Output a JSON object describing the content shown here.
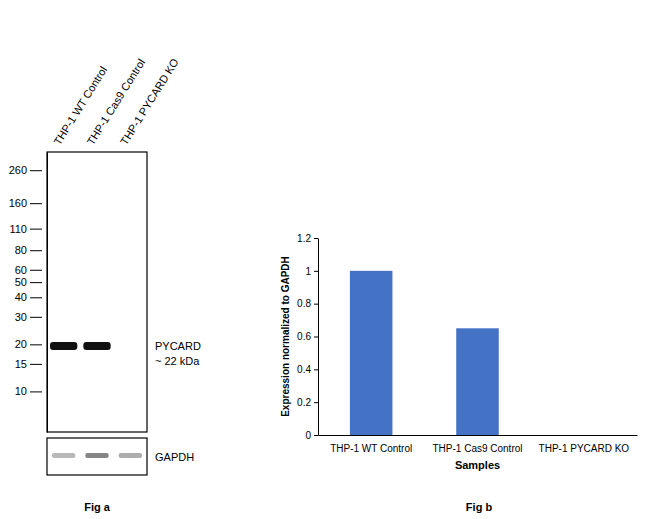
{
  "chart_data": [
    {
      "type": "blot",
      "title": "Fig a",
      "categories": [
        "THP-1 WT Control",
        "THP-1 Cas9 Control",
        "THP-1 PYCARD KO"
      ],
      "log": "y",
      "ylim": [
        5.5,
        340
      ],
      "yticks": [
        260,
        160,
        110,
        80,
        60,
        50,
        40,
        30,
        20,
        15,
        10
      ],
      "bands": [
        {
          "name": "PYCARD",
          "label": "~ 22 kDa",
          "kda": 19.5,
          "intensity": [
            1,
            1,
            0
          ]
        }
      ],
      "loading_control": {
        "name": "GAPDH",
        "intensity": [
          0.35,
          0.6,
          0.4
        ]
      }
    },
    {
      "type": "bar",
      "title": "Fig b",
      "categories": [
        "THP-1 WT Control",
        "THP-1 Cas9 Control",
        "THP-1 PYCARD KO"
      ],
      "values": [
        1,
        0.65,
        0
      ],
      "color": "#4472c4",
      "xlabel": "Samples",
      "ylabel": "Expression normalized to GAPDH",
      "ylim": [
        0,
        1.2
      ],
      "yticks": [
        0,
        0.2,
        0.4,
        0.6,
        0.8,
        1,
        1.2
      ],
      "grid": false
    }
  ]
}
